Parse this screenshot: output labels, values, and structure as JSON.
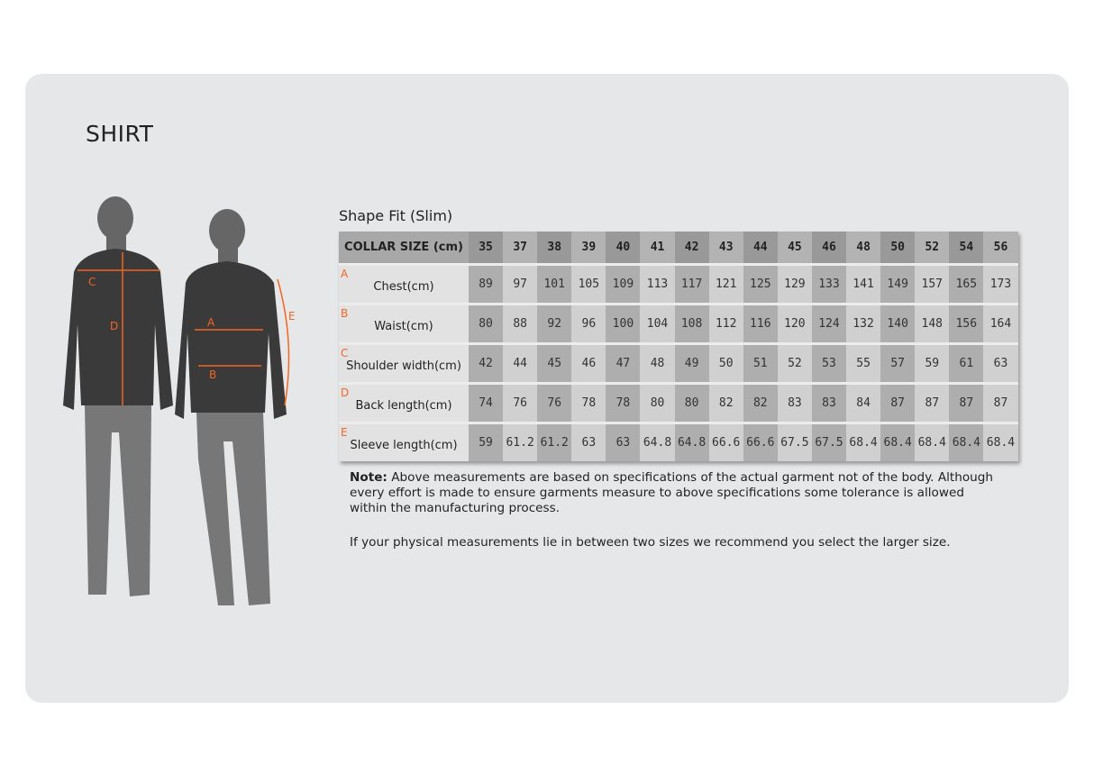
{
  "title": "SHIRT",
  "fit_label": "Shape Fit (Slim)",
  "table": {
    "header_label": "COLLAR SIZE (cm)",
    "sizes": [
      "35",
      "37",
      "38",
      "39",
      "40",
      "41",
      "42",
      "43",
      "44",
      "45",
      "46",
      "48",
      "50",
      "52",
      "54",
      "56"
    ],
    "rows": [
      {
        "letter": "A",
        "label": "Chest(cm)",
        "values": [
          "89",
          "97",
          "101",
          "105",
          "109",
          "113",
          "117",
          "121",
          "125",
          "129",
          "133",
          "141",
          "149",
          "157",
          "165",
          "173"
        ]
      },
      {
        "letter": "B",
        "label": "Waist(cm)",
        "values": [
          "80",
          "88",
          "92",
          "96",
          "100",
          "104",
          "108",
          "112",
          "116",
          "120",
          "124",
          "132",
          "140",
          "148",
          "156",
          "164"
        ]
      },
      {
        "letter": "C",
        "label": "Shoulder width(cm)",
        "values": [
          "42",
          "44",
          "45",
          "46",
          "47",
          "48",
          "49",
          "50",
          "51",
          "52",
          "53",
          "55",
          "57",
          "59",
          "61",
          "63"
        ]
      },
      {
        "letter": "D",
        "label": "Back length(cm)",
        "values": [
          "74",
          "76",
          "76",
          "78",
          "78",
          "80",
          "80",
          "82",
          "82",
          "83",
          "83",
          "84",
          "87",
          "87",
          "87",
          "87"
        ]
      },
      {
        "letter": "E",
        "label": "Sleeve length(cm)",
        "values": [
          "59",
          "61.2",
          "61.2",
          "63",
          "63",
          "64.8",
          "64.8",
          "66.6",
          "66.6",
          "67.5",
          "67.5",
          "68.4",
          "68.4",
          "68.4",
          "68.4",
          "68.4"
        ]
      }
    ]
  },
  "note": {
    "bold": "Note:",
    "text": " Above measurements are based on specifications of the actual garment not of the body. Although every effort is made to ensure garments measure to above specifications some tolerance is allowed within the manufacturing process."
  },
  "recommendation": "If your physical measurements lie in between two sizes we recommend you select the larger size.",
  "figure_labels": {
    "a": "A",
    "b": "B",
    "c": "C",
    "d": "D",
    "e": "E"
  },
  "colors": {
    "accent": "#f26522",
    "background": "#e6e7e8"
  }
}
